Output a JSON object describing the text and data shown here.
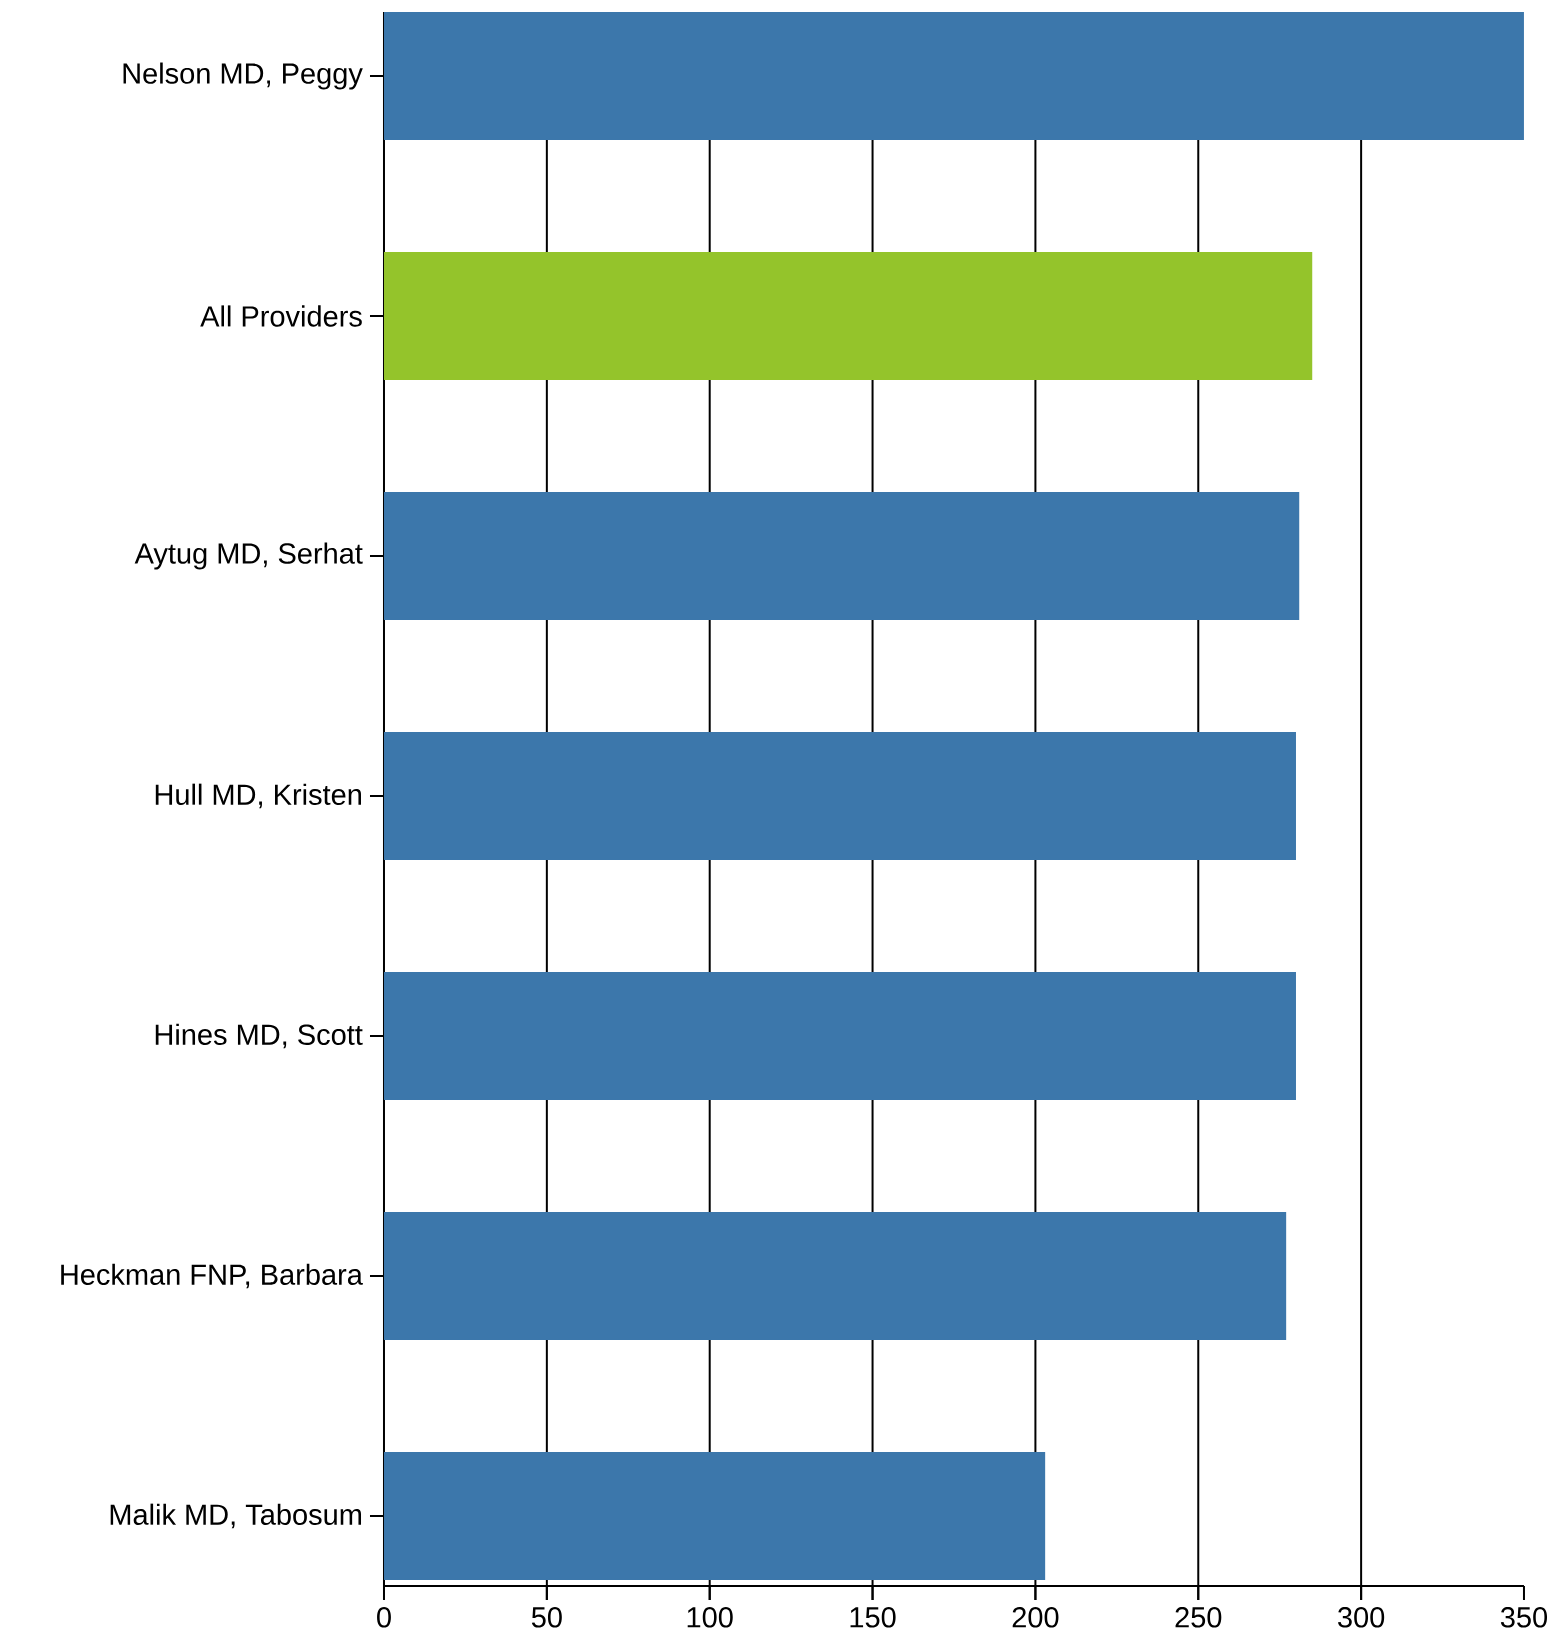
{
  "chart_data": {
    "type": "bar",
    "orientation": "horizontal",
    "categories": [
      "Nelson MD, Peggy",
      "All Providers",
      "Aytug MD, Serhat",
      "Hull MD, Kristen",
      "Hines MD, Scott",
      "Heckman FNP, Barbara",
      "Malik MD, Tabosum"
    ],
    "values": [
      350,
      285,
      281,
      280,
      280,
      277,
      203
    ],
    "colors": [
      "#3c77ab",
      "#94c42b",
      "#3c77ab",
      "#3c77ab",
      "#3c77ab",
      "#3c77ab",
      "#3c77ab"
    ],
    "xlim": [
      0,
      350
    ],
    "xticks": [
      0,
      50,
      100,
      150,
      200,
      250,
      300,
      350
    ],
    "grid": "x"
  }
}
